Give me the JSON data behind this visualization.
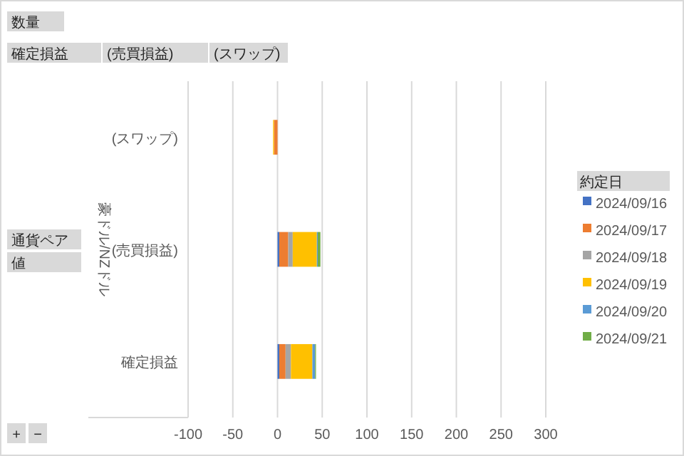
{
  "chart_data": {
    "type": "bar",
    "orientation": "horizontal",
    "stacked": true,
    "categories": [
      "(スワップ)",
      "(売買損益)",
      "確定損益"
    ],
    "ylabel": "豪ドル/NZドル",
    "legend_title": "約定日",
    "legend": "right",
    "grid": "x",
    "xlim": [
      -100,
      300
    ],
    "xticks": [
      -100,
      -50,
      0,
      50,
      100,
      150,
      200,
      250,
      300
    ],
    "annotations": [
      "数量",
      "確定損益",
      "(売買損益)",
      "(スワップ)",
      "通貨ペア",
      "値",
      "+",
      "−"
    ],
    "series": [
      {
        "name": "2024/09/16",
        "color": "#4472c4",
        "values": [
          null,
          2,
          2
        ]
      },
      {
        "name": "2024/09/17",
        "color": "#ed7d31",
        "values": [
          -4,
          10,
          7
        ]
      },
      {
        "name": "2024/09/18",
        "color": "#a5a5a5",
        "values": [
          null,
          5,
          6
        ]
      },
      {
        "name": "2024/09/19",
        "color": "#ffc000",
        "values": [
          -1,
          27,
          24
        ]
      },
      {
        "name": "2024/09/20",
        "color": "#5b9bd5",
        "values": [
          null,
          1,
          3
        ]
      },
      {
        "name": "2024/09/21",
        "color": "#70ad47",
        "values": [
          null,
          3,
          1
        ]
      }
    ]
  }
}
